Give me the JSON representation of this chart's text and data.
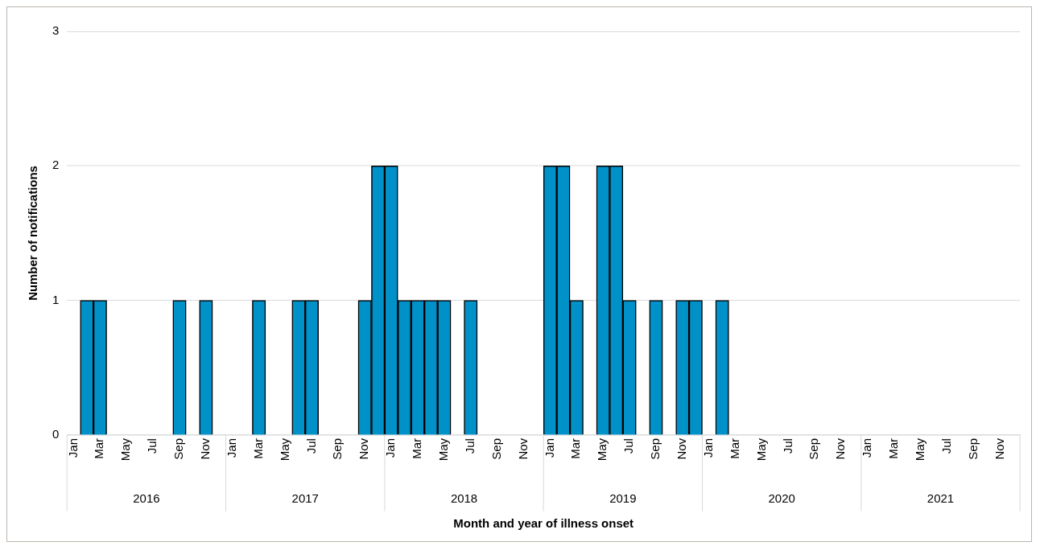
{
  "chart_data": {
    "type": "bar",
    "xlabel": "Month and year of illness onset",
    "ylabel": "Number of notifications",
    "categories": [
      "Jan",
      null,
      "Mar",
      null,
      "May",
      null,
      "Jul",
      null,
      "Sep",
      null,
      "Nov",
      null,
      "Jan",
      null,
      "Mar",
      null,
      "May",
      null,
      "Jul",
      null,
      "Sep",
      null,
      "Nov",
      null,
      "Jan",
      null,
      "Mar",
      null,
      "May",
      null,
      "Jul",
      null,
      "Sep",
      null,
      "Nov",
      null,
      "Jan",
      null,
      "Mar",
      null,
      "May",
      null,
      "Jul",
      null,
      "Sep",
      null,
      "Nov",
      null,
      "Jan",
      null,
      "Mar",
      null,
      "May",
      null,
      "Jul",
      null,
      "Sep",
      null,
      "Nov",
      null,
      "Jan",
      null,
      "Mar",
      null,
      "May",
      null,
      "Jul",
      null,
      "Sep",
      null,
      "Nov",
      null
    ],
    "values": [
      0,
      1,
      1,
      0,
      0,
      0,
      0,
      0,
      1,
      0,
      1,
      0,
      0,
      0,
      1,
      0,
      0,
      1,
      1,
      0,
      0,
      0,
      1,
      2,
      2,
      1,
      1,
      1,
      1,
      0,
      1,
      0,
      0,
      0,
      0,
      0,
      2,
      2,
      1,
      0,
      2,
      2,
      1,
      0,
      1,
      0,
      1,
      1,
      0,
      1,
      0,
      0,
      0,
      0,
      0,
      0,
      0,
      0,
      0,
      0,
      0,
      0,
      0,
      0,
      0,
      0,
      0,
      0,
      0,
      0,
      0,
      0
    ],
    "color": "#0091c9",
    "annotations": [
      "2016",
      "2017",
      "2018",
      "2019",
      "2020",
      "2021"
    ],
    "ylim": [
      0,
      3
    ],
    "yticks": [
      0,
      1,
      2,
      3
    ],
    "grid": "y",
    "legend": false
  }
}
